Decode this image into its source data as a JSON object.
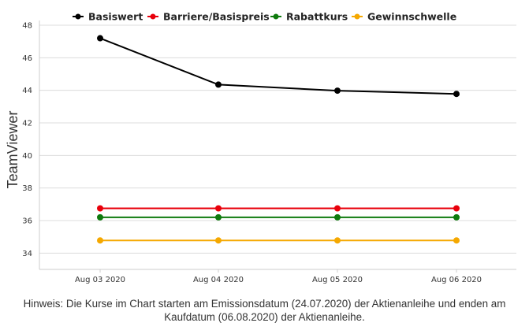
{
  "chart_data": {
    "type": "line",
    "ylabel": "TeamViewer",
    "categories": [
      "Aug 03 2020",
      "Aug 04 2020",
      "Aug 05 2020",
      "Aug 06 2020"
    ],
    "ylim": [
      33,
      48
    ],
    "yticks": [
      34,
      36,
      38,
      40,
      42,
      44,
      46,
      48
    ],
    "grid": true,
    "legend_position": "top-center",
    "series": [
      {
        "name": "Basiswert",
        "color": "#000000",
        "values": [
          47.2,
          44.35,
          43.98,
          43.78
        ]
      },
      {
        "name": "Barriere/Basispreis",
        "color": "#e8000b",
        "values": [
          36.75,
          36.75,
          36.75,
          36.75
        ]
      },
      {
        "name": "Rabattkurs",
        "color": "#0e7a0d",
        "values": [
          36.2,
          36.2,
          36.2,
          36.2
        ]
      },
      {
        "name": "Gewinnschwelle",
        "color": "#f5a800",
        "values": [
          34.78,
          34.78,
          34.78,
          34.78
        ]
      }
    ]
  },
  "note": "Hinweis: Die Kurse im Chart starten am Emissionsdatum (24.07.2020) der Aktienanleihe und enden am Kaufdatum (06.08.2020) der Aktienanleihe."
}
